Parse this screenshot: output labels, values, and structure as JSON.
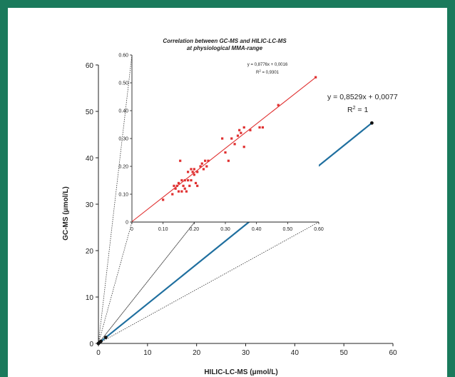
{
  "chart_data": [
    {
      "type": "line",
      "xlabel": "HILIC-LC-MS (μmol/L)",
      "ylabel": "GC-MS (μmol/L)",
      "xlim": [
        0,
        60
      ],
      "ylim": [
        0,
        60
      ],
      "x_ticks": [
        "0",
        "10",
        "20",
        "30",
        "40",
        "50",
        "60"
      ],
      "y_ticks": [
        "0",
        "10",
        "20",
        "30",
        "40",
        "50",
        "60"
      ],
      "equation": "y = 0,8529x + 0,0077",
      "r2": "R2 = 1",
      "points": [
        {
          "x": 0,
          "y": 0
        },
        {
          "x": 0.2,
          "y": 0.2
        },
        {
          "x": 0.5,
          "y": 0.45
        },
        {
          "x": 1.5,
          "y": 1.3
        },
        {
          "x": 55.7,
          "y": 47.5
        }
      ],
      "fit_line": {
        "x": [
          0,
          55.7
        ],
        "y": [
          0.0077,
          47.51
        ]
      },
      "colors": {
        "fit_line": "#1f6f9f",
        "fit_line_highlight": "#a7c5e3",
        "points": "#111111"
      },
      "grid": false
    },
    {
      "type": "scatter",
      "title": "Correlation between GC-MS and HILIC-LC-MS",
      "subtitle": "at physiological MMA-range",
      "xlabel": "",
      "ylabel": "",
      "xlim": [
        0,
        0.6
      ],
      "ylim": [
        0,
        0.6
      ],
      "x_ticks": [
        "0",
        "0.10",
        "0.20",
        "0.30",
        "0.40",
        "0.50",
        "0.60"
      ],
      "y_ticks": [
        "0",
        "0.10",
        "0.20",
        "0.30",
        "0.40",
        "0.50",
        "0.60"
      ],
      "equation": "y = 0,8776x + 0,0016",
      "r2": "R2 = 0,9301",
      "points": [
        {
          "x": 0.1,
          "y": 0.08
        },
        {
          "x": 0.13,
          "y": 0.1
        },
        {
          "x": 0.135,
          "y": 0.13
        },
        {
          "x": 0.14,
          "y": 0.12
        },
        {
          "x": 0.145,
          "y": 0.13
        },
        {
          "x": 0.15,
          "y": 0.11
        },
        {
          "x": 0.15,
          "y": 0.14
        },
        {
          "x": 0.155,
          "y": 0.22
        },
        {
          "x": 0.16,
          "y": 0.15
        },
        {
          "x": 0.16,
          "y": 0.11
        },
        {
          "x": 0.165,
          "y": 0.13
        },
        {
          "x": 0.17,
          "y": 0.15
        },
        {
          "x": 0.17,
          "y": 0.12
        },
        {
          "x": 0.175,
          "y": 0.11
        },
        {
          "x": 0.18,
          "y": 0.18
        },
        {
          "x": 0.18,
          "y": 0.15
        },
        {
          "x": 0.185,
          "y": 0.13
        },
        {
          "x": 0.19,
          "y": 0.19
        },
        {
          "x": 0.19,
          "y": 0.15
        },
        {
          "x": 0.195,
          "y": 0.18
        },
        {
          "x": 0.2,
          "y": 0.17
        },
        {
          "x": 0.2,
          "y": 0.19
        },
        {
          "x": 0.205,
          "y": 0.14
        },
        {
          "x": 0.21,
          "y": 0.13
        },
        {
          "x": 0.21,
          "y": 0.18
        },
        {
          "x": 0.22,
          "y": 0.2
        },
        {
          "x": 0.225,
          "y": 0.21
        },
        {
          "x": 0.23,
          "y": 0.19
        },
        {
          "x": 0.235,
          "y": 0.22
        },
        {
          "x": 0.24,
          "y": 0.2
        },
        {
          "x": 0.245,
          "y": 0.22
        },
        {
          "x": 0.29,
          "y": 0.3
        },
        {
          "x": 0.3,
          "y": 0.25
        },
        {
          "x": 0.31,
          "y": 0.22
        },
        {
          "x": 0.32,
          "y": 0.3
        },
        {
          "x": 0.33,
          "y": 0.28
        },
        {
          "x": 0.34,
          "y": 0.31
        },
        {
          "x": 0.345,
          "y": 0.33
        },
        {
          "x": 0.35,
          "y": 0.32
        },
        {
          "x": 0.36,
          "y": 0.27
        },
        {
          "x": 0.36,
          "y": 0.34
        },
        {
          "x": 0.38,
          "y": 0.33
        },
        {
          "x": 0.41,
          "y": 0.34
        },
        {
          "x": 0.42,
          "y": 0.34
        },
        {
          "x": 0.47,
          "y": 0.42
        },
        {
          "x": 0.59,
          "y": 0.52
        }
      ],
      "fit_line": {
        "x": [
          0,
          0.59
        ],
        "y": [
          0.0016,
          0.5194
        ]
      },
      "colors": {
        "points": "#e03030",
        "fit_line": "#e03030"
      },
      "grid": false
    }
  ]
}
